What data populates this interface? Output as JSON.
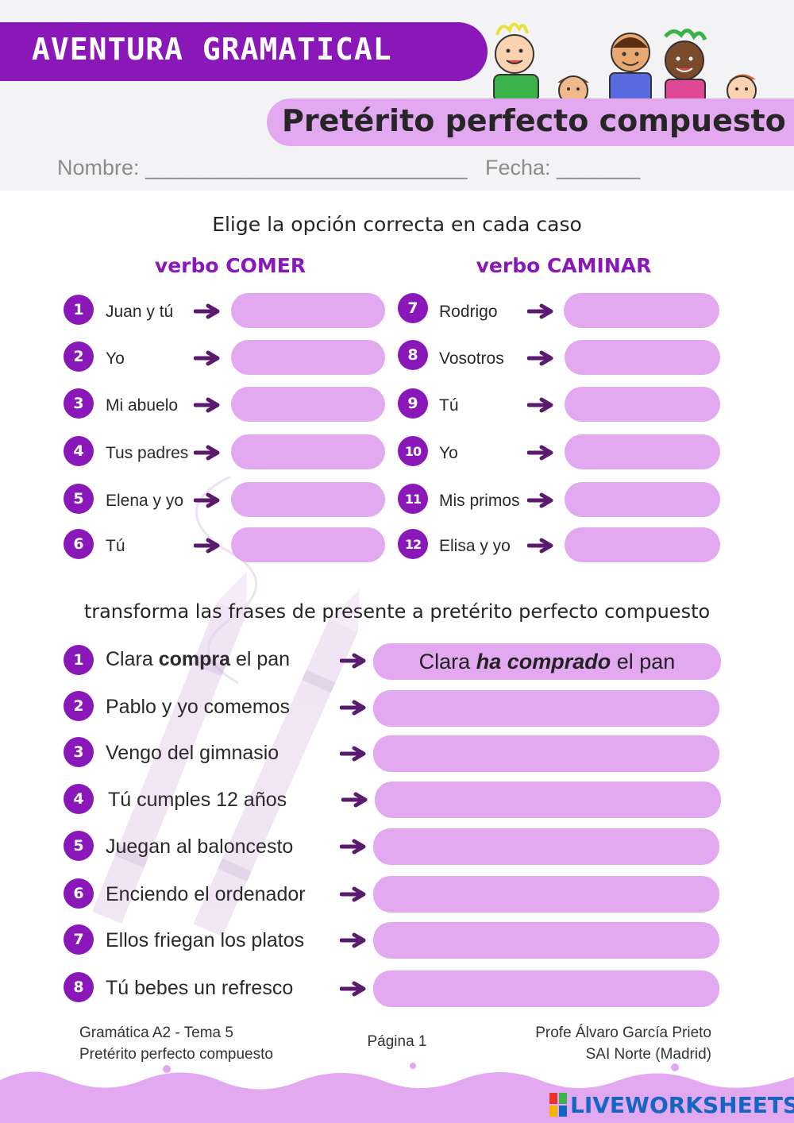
{
  "header": {
    "title": "AVENTURA GRAMATICAL",
    "subtitle": "Pretérito perfecto compuesto",
    "name_line": "Nombre: ___________________________   Fecha: _______"
  },
  "section1": {
    "instruction": "Elige la opción correcta en cada caso",
    "left_title": "verbo COMER",
    "right_title": "verbo CAMINAR",
    "left_items": [
      {
        "num": "1",
        "label": "Juan y tú"
      },
      {
        "num": "2",
        "label": "Yo"
      },
      {
        "num": "3",
        "label": "Mi abuelo"
      },
      {
        "num": "4",
        "label": "Tus padres"
      },
      {
        "num": "5",
        "label": "Elena y yo"
      },
      {
        "num": "6",
        "label": "Tú"
      }
    ],
    "right_items": [
      {
        "num": "7",
        "label": "Rodrigo"
      },
      {
        "num": "8",
        "label": "Vosotros"
      },
      {
        "num": "9",
        "label": "Tú"
      },
      {
        "num": "10",
        "label": "Yo"
      },
      {
        "num": "11",
        "label": "Mis primos"
      },
      {
        "num": "12",
        "label": "Elisa y yo"
      }
    ]
  },
  "section2": {
    "instruction": "transforma las frases de presente a pretérito perfecto compuesto",
    "example": {
      "num": "1",
      "pre": "Clara ",
      "bold": "compra",
      "post": " el pan",
      "answer_pre": "Clara ",
      "answer_bold": "ha comprado",
      "answer_post": " el pan"
    },
    "items": [
      {
        "num": "2",
        "label": "Pablo y yo comemos"
      },
      {
        "num": "3",
        "label": "Vengo del gimnasio"
      },
      {
        "num": "4",
        "label": "Tú cumples 12 años"
      },
      {
        "num": "5",
        "label": "Juegan al baloncesto"
      },
      {
        "num": "6",
        "label": "Enciendo el ordenador"
      },
      {
        "num": "7",
        "label": "Ellos friegan los platos"
      },
      {
        "num": "8",
        "label": "Tú bebes un refresco"
      }
    ]
  },
  "footer": {
    "left_line1": "Gramática A2 - Tema 5",
    "left_line2": "Pretérito perfecto compuesto",
    "center": "Página 1",
    "right_line1": "Profe Álvaro García Prieto",
    "right_line2": "SAI Norte (Madrid)",
    "brand": "LIVEWORKSHEETS"
  },
  "colors": {
    "primary": "#8a17b8",
    "pill": "#e2a8f0",
    "arrow": "#5a1a6e",
    "brand": "#1566c4"
  }
}
